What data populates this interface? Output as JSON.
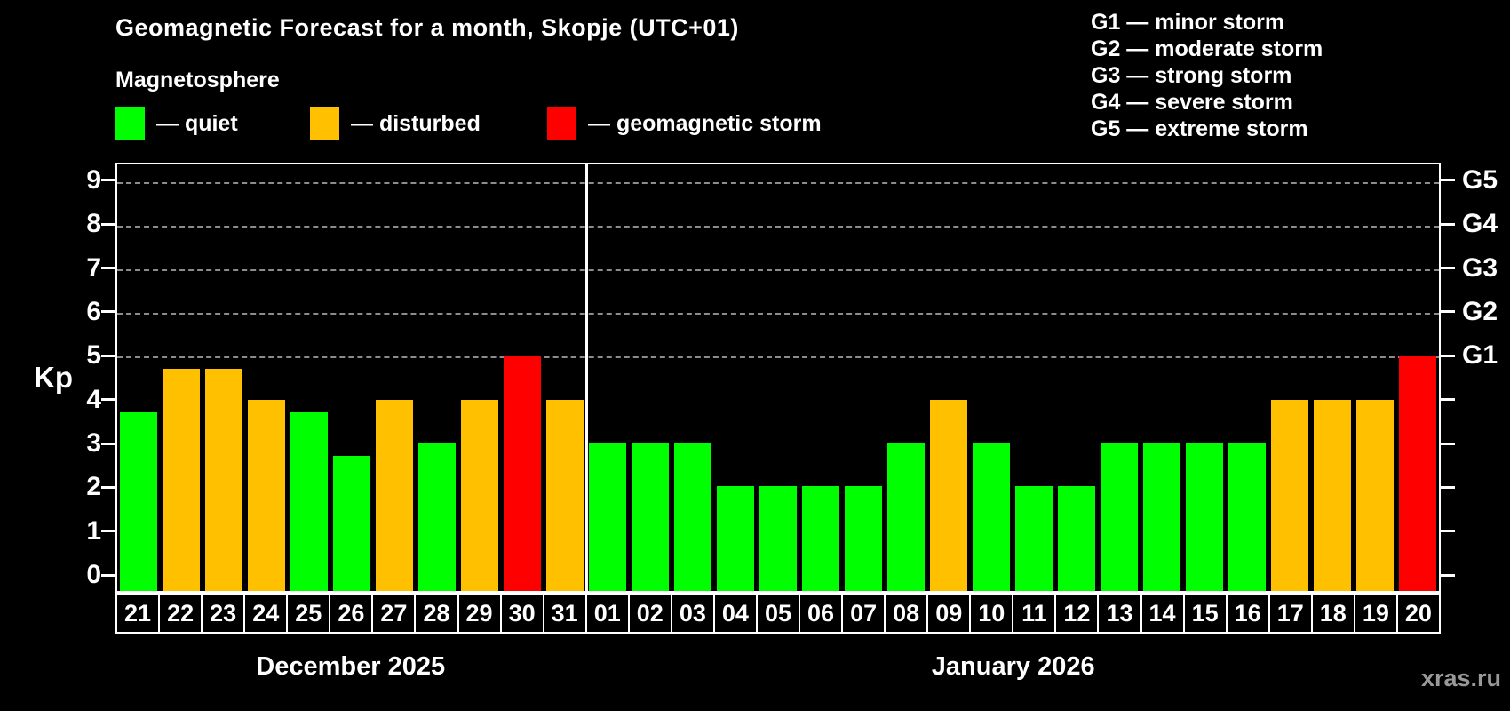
{
  "title": "Geomagnetic Forecast for a month, Skopje (UTC+01)",
  "subtitle": "Magnetosphere",
  "legend": {
    "quiet_label": "— quiet",
    "disturbed_label": "— disturbed",
    "storm_label": "— geomagnetic storm"
  },
  "g_legend": [
    "G1 — minor storm",
    "G2 — moderate storm",
    "G3 — strong storm",
    "G4 — severe storm",
    "G5 — extreme storm"
  ],
  "axis": {
    "y_label": "Kp",
    "y_ticks": [
      0,
      1,
      2,
      3,
      4,
      5,
      6,
      7,
      8,
      9
    ],
    "right_labels": [
      {
        "kp": 5,
        "label": "G1"
      },
      {
        "kp": 6,
        "label": "G2"
      },
      {
        "kp": 7,
        "label": "G3"
      },
      {
        "kp": 8,
        "label": "G4"
      },
      {
        "kp": 9,
        "label": "G5"
      }
    ]
  },
  "watermark": "xras.ru",
  "colors": {
    "quiet": "#00FF00",
    "disturbed": "#FFC000",
    "storm": "#FF0000",
    "background": "#000000",
    "gridline": "#8C8C8C"
  },
  "chart_data": {
    "type": "bar",
    "title": "Geomagnetic Forecast for a month, Skopje (UTC+01)",
    "xlabel": "",
    "ylabel": "Kp",
    "ylim": [
      0,
      9
    ],
    "gridlines_at": [
      5,
      6,
      7,
      8,
      9
    ],
    "legend_position": "top",
    "months": [
      {
        "label": "December 2025",
        "days": [
          {
            "day": "21",
            "kp": 3.7,
            "level": "quiet"
          },
          {
            "day": "22",
            "kp": 4.7,
            "level": "disturbed"
          },
          {
            "day": "23",
            "kp": 4.7,
            "level": "disturbed"
          },
          {
            "day": "24",
            "kp": 4.0,
            "level": "disturbed"
          },
          {
            "day": "25",
            "kp": 3.7,
            "level": "quiet"
          },
          {
            "day": "26",
            "kp": 2.7,
            "level": "quiet"
          },
          {
            "day": "27",
            "kp": 4.0,
            "level": "disturbed"
          },
          {
            "day": "28",
            "kp": 3.0,
            "level": "quiet"
          },
          {
            "day": "29",
            "kp": 4.0,
            "level": "disturbed"
          },
          {
            "day": "30",
            "kp": 5.0,
            "level": "storm"
          },
          {
            "day": "31",
            "kp": 4.0,
            "level": "disturbed"
          }
        ]
      },
      {
        "label": "January 2026",
        "days": [
          {
            "day": "01",
            "kp": 3.0,
            "level": "quiet"
          },
          {
            "day": "02",
            "kp": 3.0,
            "level": "quiet"
          },
          {
            "day": "03",
            "kp": 3.0,
            "level": "quiet"
          },
          {
            "day": "04",
            "kp": 2.0,
            "level": "quiet"
          },
          {
            "day": "05",
            "kp": 2.0,
            "level": "quiet"
          },
          {
            "day": "06",
            "kp": 2.0,
            "level": "quiet"
          },
          {
            "day": "07",
            "kp": 2.0,
            "level": "quiet"
          },
          {
            "day": "08",
            "kp": 3.0,
            "level": "quiet"
          },
          {
            "day": "09",
            "kp": 4.0,
            "level": "disturbed"
          },
          {
            "day": "10",
            "kp": 3.0,
            "level": "quiet"
          },
          {
            "day": "11",
            "kp": 2.0,
            "level": "quiet"
          },
          {
            "day": "12",
            "kp": 2.0,
            "level": "quiet"
          },
          {
            "day": "13",
            "kp": 3.0,
            "level": "quiet"
          },
          {
            "day": "14",
            "kp": 3.0,
            "level": "quiet"
          },
          {
            "day": "15",
            "kp": 3.0,
            "level": "quiet"
          },
          {
            "day": "16",
            "kp": 3.0,
            "level": "quiet"
          },
          {
            "day": "17",
            "kp": 4.0,
            "level": "disturbed"
          },
          {
            "day": "18",
            "kp": 4.0,
            "level": "disturbed"
          },
          {
            "day": "19",
            "kp": 4.0,
            "level": "disturbed"
          },
          {
            "day": "20",
            "kp": 5.0,
            "level": "storm"
          }
        ]
      }
    ]
  }
}
